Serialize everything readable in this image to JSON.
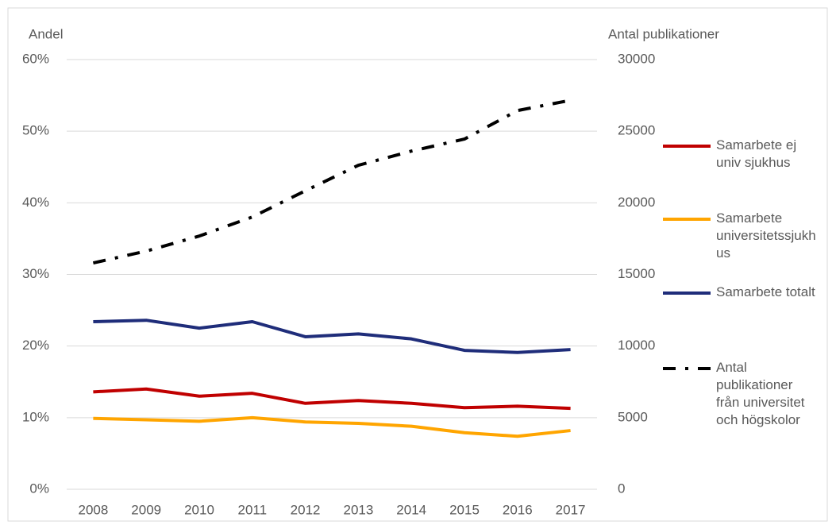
{
  "chart_data": {
    "type": "line",
    "y_label": "Andel",
    "y2_label": "Antal publikationer",
    "categories": [
      "2008",
      "2009",
      "2010",
      "2011",
      "2012",
      "2013",
      "2014",
      "2015",
      "2016",
      "2017"
    ],
    "series": [
      {
        "name": "Samarbete ej univ sjukhus",
        "color": "#c00000",
        "values": [
          13.6,
          14.0,
          13.0,
          13.4,
          12.0,
          12.4,
          12.0,
          11.4,
          11.6,
          11.3
        ]
      },
      {
        "name": "Samarbete universitetssjukhus",
        "color": "#ffa500",
        "values": [
          9.9,
          9.7,
          9.5,
          10.0,
          9.4,
          9.2,
          8.8,
          7.9,
          7.4,
          8.2
        ]
      },
      {
        "name": "Samarbete totalt",
        "color": "#1f2d7a",
        "values": [
          23.4,
          23.6,
          22.5,
          23.4,
          21.3,
          21.7,
          21.0,
          19.4,
          19.1,
          19.5
        ]
      },
      {
        "name": "Antal publikationer från universitet och högskolor",
        "color": "#000000",
        "style": "dashdot",
        "axis": "y2",
        "values": [
          15800,
          16630,
          17680,
          19010,
          20840,
          22620,
          23610,
          24450,
          26440,
          27160
        ]
      }
    ],
    "ylim": [
      0,
      60
    ],
    "yticks": [
      {
        "value": 0,
        "label": "0%"
      },
      {
        "value": 10,
        "label": "10%"
      },
      {
        "value": 20,
        "label": "20%"
      },
      {
        "value": 30,
        "label": "30%"
      },
      {
        "value": 40,
        "label": "40%"
      },
      {
        "value": 50,
        "label": "50%"
      },
      {
        "value": 60,
        "label": "60%"
      }
    ],
    "y2lim": [
      0,
      30000
    ],
    "y2ticks": [
      0,
      5000,
      10000,
      15000,
      20000,
      25000,
      30000
    ],
    "grid": true,
    "legend": "right"
  }
}
